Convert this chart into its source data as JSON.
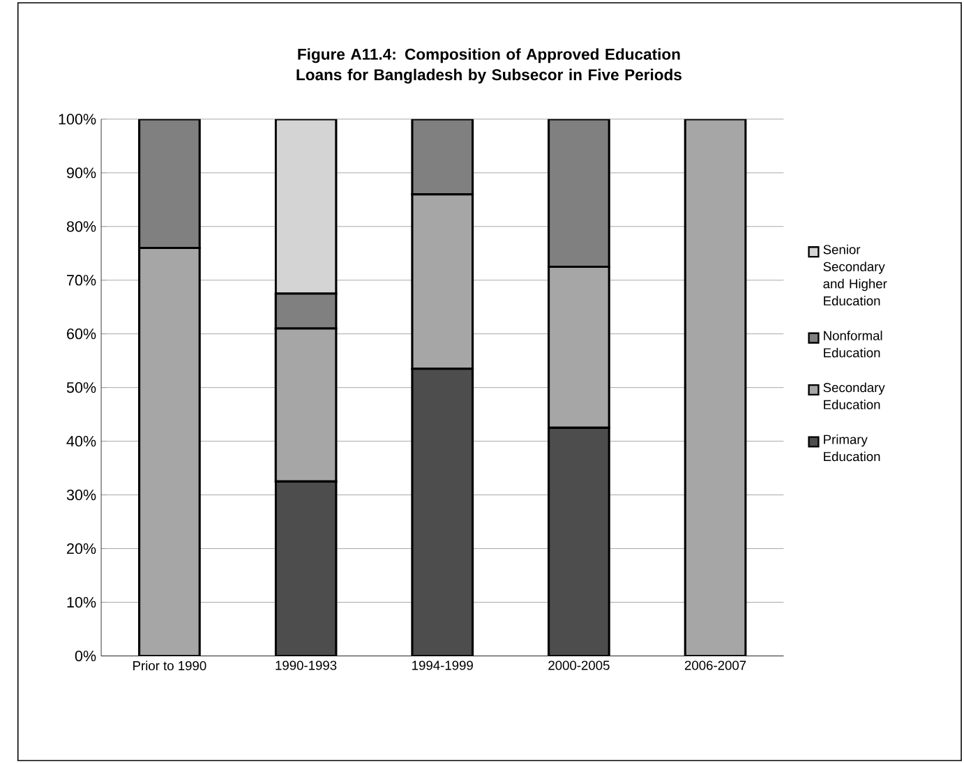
{
  "chart_data": {
    "type": "bar",
    "stacked": true,
    "title": "Figure A11.4: Composition of Approved Education Loans for Bangladesh by Subsecor in Five Periods",
    "categories": [
      "Prior to 1990",
      "1990-1993",
      "1994-1999",
      "2000-2005",
      "2006-2007"
    ],
    "series": [
      {
        "name": "Primary Education",
        "color": "#4d4d4d",
        "values": [
          0,
          32.5,
          53.5,
          42.5,
          0
        ]
      },
      {
        "name": "Secondary Education",
        "color": "#a6a6a6",
        "values": [
          76,
          28.5,
          32.5,
          30,
          100
        ]
      },
      {
        "name": "Nonformal Education",
        "color": "#808080",
        "values": [
          24,
          6.5,
          14,
          27.5,
          0
        ]
      },
      {
        "name": "Senior Secondary and Higher Education",
        "color": "#d4d4d4",
        "values": [
          0,
          32.5,
          0,
          0,
          0
        ]
      }
    ],
    "ylim": [
      0,
      100
    ],
    "yticks": [
      {
        "value": 0,
        "label": "0%"
      },
      {
        "value": 10,
        "label": "10%"
      },
      {
        "value": 20,
        "label": "20%"
      },
      {
        "value": 30,
        "label": "30%"
      },
      {
        "value": 40,
        "label": "40%"
      },
      {
        "value": 50,
        "label": "50%"
      },
      {
        "value": 60,
        "label": "60%"
      },
      {
        "value": 70,
        "label": "70%"
      },
      {
        "value": 80,
        "label": "80%"
      },
      {
        "value": 90,
        "label": "90%"
      },
      {
        "value": 100,
        "label": "100%"
      }
    ],
    "grid": "y",
    "legend": "right"
  }
}
